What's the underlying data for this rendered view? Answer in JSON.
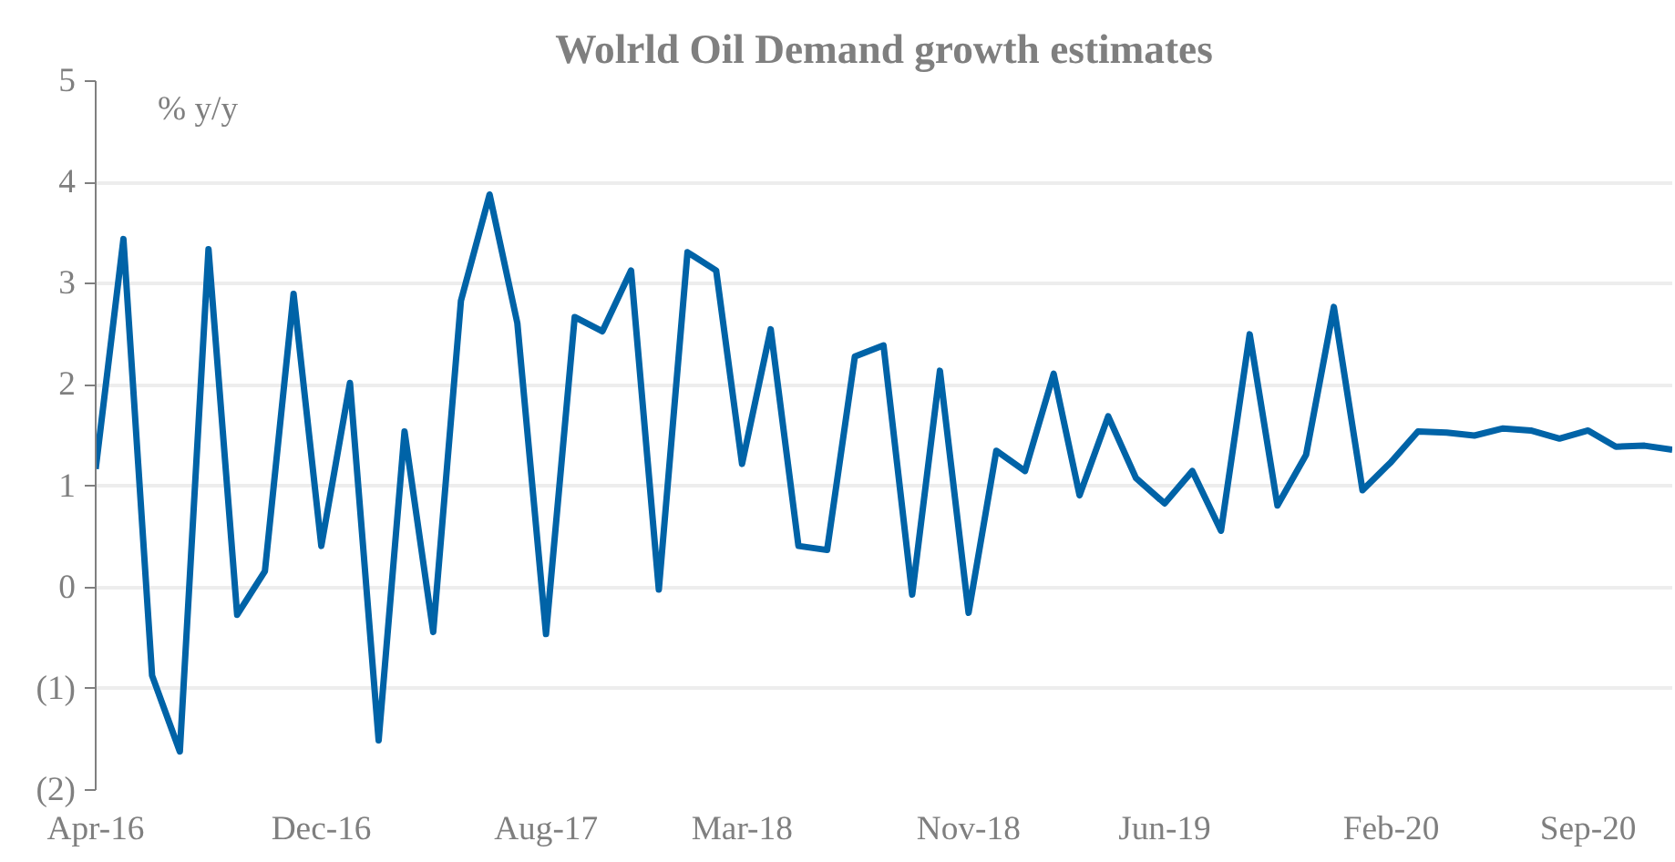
{
  "chart_data": {
    "type": "line",
    "title": "Wolrld Oil Demand growth estimates",
    "ylabel": "% y/y",
    "x": [
      "2016-04",
      "2016-05",
      "2016-06",
      "2016-07",
      "2016-08",
      "2016-09",
      "2016-10",
      "2016-11",
      "2016-12",
      "2017-01",
      "2017-02",
      "2017-03",
      "2017-04",
      "2017-05",
      "2017-06",
      "2017-07",
      "2017-08",
      "2017-09",
      "2017-10",
      "2017-11",
      "2017-12",
      "2018-01",
      "2018-02",
      "2018-03",
      "2018-04",
      "2018-05",
      "2018-06",
      "2018-07",
      "2018-08",
      "2018-09",
      "2018-10",
      "2018-11",
      "2018-12",
      "2019-01",
      "2019-02",
      "2019-03",
      "2019-04",
      "2019-05",
      "2019-06",
      "2019-07",
      "2019-08",
      "2019-09",
      "2019-10",
      "2019-11",
      "2019-12",
      "2020-01",
      "2020-02",
      "2020-03",
      "2020-04",
      "2020-05",
      "2020-06",
      "2020-07",
      "2020-08",
      "2020-09",
      "2020-10",
      "2020-11",
      "2020-12"
    ],
    "series": [
      {
        "color": "#0063a7",
        "values": [
          1.17,
          3.44,
          -0.87,
          -1.62,
          3.34,
          -0.27,
          0.16,
          2.9,
          0.41,
          2.02,
          -1.51,
          1.54,
          -0.44,
          2.83,
          3.88,
          2.61,
          -0.46,
          2.67,
          2.53,
          3.13,
          -0.02,
          3.31,
          3.13,
          1.22,
          2.55,
          0.41,
          0.37,
          2.28,
          2.39,
          -0.07,
          2.14,
          -0.25,
          1.35,
          1.15,
          2.11,
          0.91,
          1.69,
          1.08,
          0.83,
          1.15,
          0.56,
          2.5,
          0.81,
          1.31,
          2.77,
          0.96,
          1.24,
          1.54,
          1.53,
          1.5,
          1.57,
          1.55,
          1.47,
          1.55,
          1.39,
          1.4,
          1.36
        ]
      }
    ],
    "xlim": [
      "2016-04",
      "2020-12"
    ],
    "xticks": [
      {
        "value": "2016-04",
        "label": "Apr-16"
      },
      {
        "value": "2016-12",
        "label": "Dec-16"
      },
      {
        "value": "2017-08",
        "label": "Aug-17"
      },
      {
        "value": "2018-03",
        "label": "Mar-18"
      },
      {
        "value": "2018-11",
        "label": "Nov-18"
      },
      {
        "value": "2019-06",
        "label": "Jun-19"
      },
      {
        "value": "2020-02",
        "label": "Feb-20"
      },
      {
        "value": "2020-09",
        "label": "Sep-20"
      }
    ],
    "ylim": [
      -2,
      5
    ],
    "yticks": [
      {
        "value": -2,
        "label": "(2)"
      },
      {
        "value": -1,
        "label": "(1)"
      },
      0,
      1,
      2,
      3,
      4,
      5
    ],
    "grid": "y",
    "line_style": "solid",
    "marker": "none"
  }
}
